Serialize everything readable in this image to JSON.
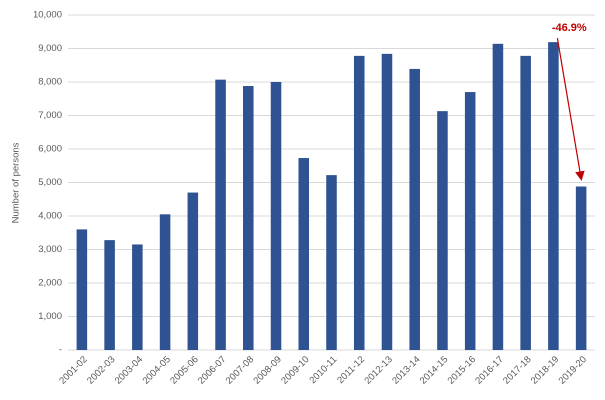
{
  "chart_data": {
    "type": "bar",
    "y_label": "Number of persons",
    "categories": [
      "2001-02",
      "2002-03",
      "2003-04",
      "2004-05",
      "2005-06",
      "2006-07",
      "2007-08",
      "2008-09",
      "2009-10",
      "2010-11",
      "2011-12",
      "2012-13",
      "2013-14",
      "2014-15",
      "2015-16",
      "2016-17",
      "2017-18",
      "2018-19",
      "2019-20"
    ],
    "values": [
      3600,
      3280,
      3150,
      4050,
      4700,
      8070,
      7880,
      8000,
      5730,
      5220,
      8780,
      8840,
      8390,
      7130,
      7700,
      9140,
      8780,
      9190,
      4880
    ],
    "color": "#2e5292",
    "ylim": [
      0,
      10000
    ],
    "yticks": [
      {
        "value": 0,
        "label": "-"
      },
      {
        "value": 1000,
        "label": "1,000"
      },
      {
        "value": 2000,
        "label": "2,000"
      },
      {
        "value": 3000,
        "label": "3,000"
      },
      {
        "value": 4000,
        "label": "4,000"
      },
      {
        "value": 5000,
        "label": "5,000"
      },
      {
        "value": 6000,
        "label": "6,000"
      },
      {
        "value": 7000,
        "label": "7,000"
      },
      {
        "value": 8000,
        "label": "8,000"
      },
      {
        "value": 9000,
        "label": "9,000"
      },
      {
        "value": 10000,
        "label": "10,000"
      }
    ],
    "grid": true,
    "annotation": {
      "text": "-46.9%",
      "color": "#c00000"
    }
  }
}
